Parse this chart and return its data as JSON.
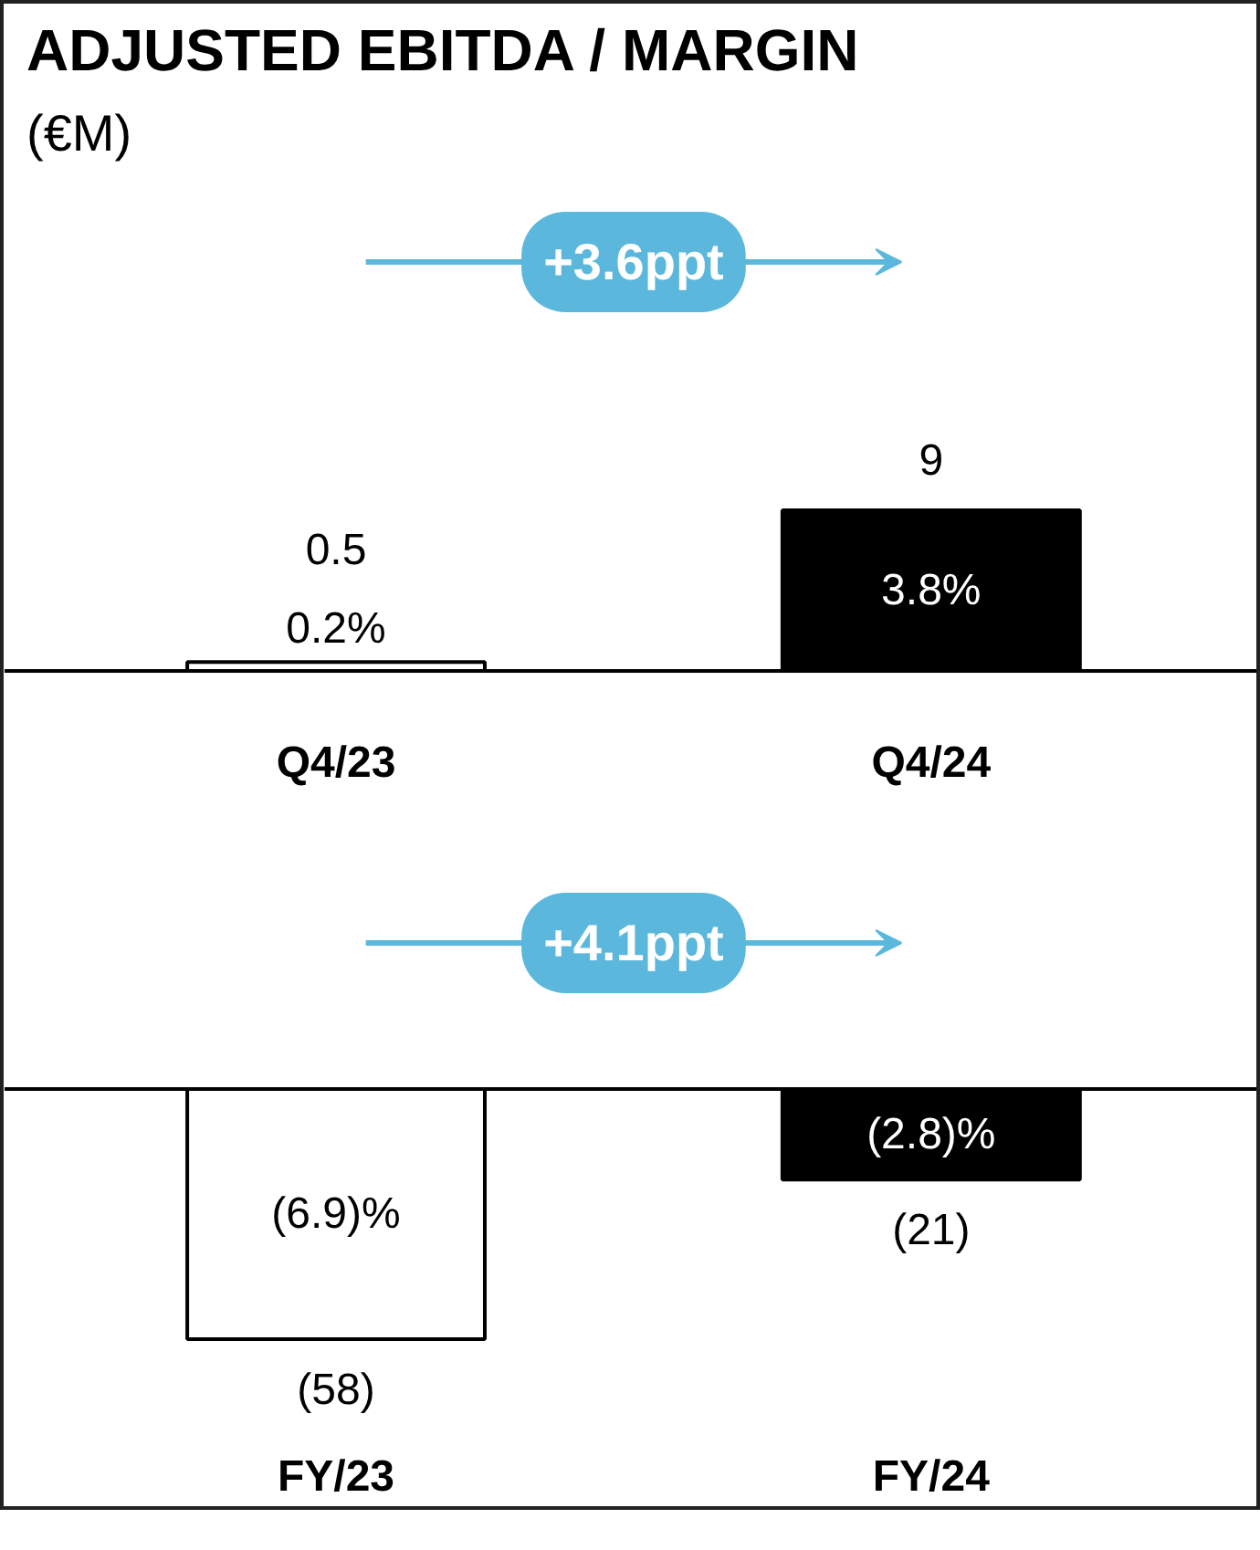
{
  "chart_data": [
    {
      "type": "bar",
      "title": "ADJUSTED EBITDA / MARGIN",
      "subtitle": "(€M)",
      "categories": [
        "Q4/23",
        "Q4/24"
      ],
      "values": [
        0.5,
        9
      ],
      "colors": [
        "#ffffff",
        "#000000"
      ],
      "value_labels": [
        "0.5",
        "9"
      ],
      "annotations": [
        "+3.6ppt",
        {
          "text": "0.2%",
          "x": "Q4/23",
          "y": 0.5
        },
        {
          "text": "3.8%",
          "x": "Q4/24",
          "y": 9
        }
      ]
    },
    {
      "type": "bar",
      "categories": [
        "FY/23",
        "FY/24"
      ],
      "values": [
        -58,
        -21
      ],
      "colors": [
        "#ffffff",
        "#000000"
      ],
      "value_labels": [
        "(58)",
        "(21)"
      ],
      "annotations": [
        "+4.1ppt",
        {
          "text": "(6.9)%",
          "x": "FY/23",
          "y": -58
        },
        {
          "text": "(2.8)%",
          "x": "FY/24",
          "y": -21
        }
      ]
    }
  ]
}
